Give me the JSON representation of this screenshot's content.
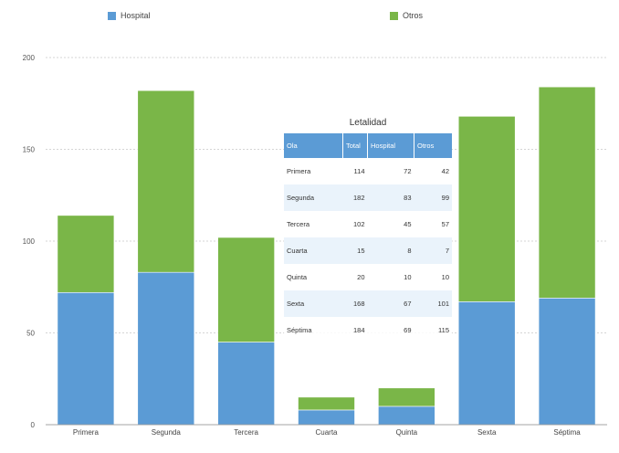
{
  "chart_data": {
    "type": "bar",
    "stacked": true,
    "categories": [
      "Primera",
      "Segunda",
      "Tercera",
      "Cuarta",
      "Quinta",
      "Sexta",
      "Séptima"
    ],
    "series": [
      {
        "name": "Hospital",
        "color": "#5b9bd5",
        "values": [
          72,
          83,
          45,
          8,
          10,
          67,
          69
        ]
      },
      {
        "name": "Otros",
        "color": "#7ab648",
        "values": [
          42,
          99,
          57,
          7,
          10,
          101,
          115
        ]
      }
    ],
    "ylim": [
      0,
      200
    ],
    "yticks": [
      0,
      50,
      100,
      150,
      200
    ],
    "grid": true,
    "legend_position": "top"
  },
  "table": {
    "title": "Letalidad",
    "headers": [
      "Ola",
      "Total",
      "Hospital",
      "Otros"
    ],
    "rows": [
      [
        "Primera",
        "114",
        "72",
        "42"
      ],
      [
        "Segunda",
        "182",
        "83",
        "99"
      ],
      [
        "Tercera",
        "102",
        "45",
        "57"
      ],
      [
        "Cuarta",
        "15",
        "8",
        "7"
      ],
      [
        "Quinta",
        "20",
        "10",
        "10"
      ],
      [
        "Sexta",
        "168",
        "67",
        "101"
      ],
      [
        "Séptima",
        "184",
        "69",
        "115"
      ]
    ]
  }
}
